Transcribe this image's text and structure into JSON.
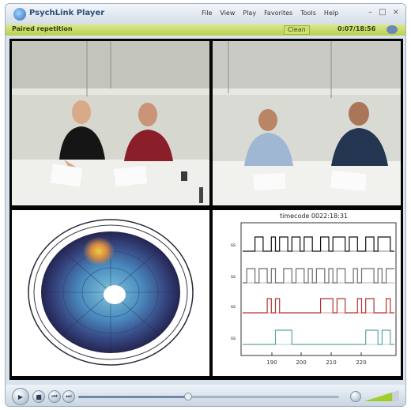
{
  "app": {
    "title": "PsychLink Player"
  },
  "menu": [
    "File",
    "View",
    "Play",
    "Favorites",
    "Tools",
    "Help"
  ],
  "window_controls": {
    "minimize": "–",
    "maximize": "□",
    "close": "×"
  },
  "status": {
    "left": "Paired repetition",
    "middle": "Clean",
    "time": "0:07/18:56"
  },
  "plot": {
    "title": "timecode 0022:18:31",
    "colors": [
      "#111111",
      "#6e6e6e",
      "#b33434",
      "#5fa3a0"
    ],
    "chart_data": {
      "type": "line",
      "series": [
        {
          "values": [
            0,
            0,
            0,
            1,
            1,
            0,
            0,
            1,
            0,
            1,
            1,
            0,
            1,
            1,
            0,
            1,
            1,
            0,
            0,
            1,
            1,
            0,
            1,
            1,
            1,
            0,
            1,
            1,
            0,
            0,
            1,
            1,
            0,
            1,
            1,
            1,
            0
          ]
        },
        {
          "values": [
            0,
            1,
            1,
            0,
            1,
            1,
            0,
            1,
            0,
            0,
            1,
            1,
            0,
            1,
            1,
            0,
            1,
            0,
            1,
            1,
            0,
            1,
            0,
            1,
            1,
            0,
            0,
            1,
            0,
            1,
            1,
            1,
            0,
            1,
            0,
            1,
            1
          ]
        },
        {
          "values": [
            0,
            0,
            0,
            0,
            0,
            0,
            1,
            0,
            1,
            0,
            0,
            0,
            0,
            0,
            0,
            0,
            0,
            0,
            0,
            1,
            1,
            1,
            0,
            1,
            1,
            0,
            0,
            0,
            1,
            0,
            1,
            1,
            0,
            0,
            0,
            1,
            0
          ]
        },
        {
          "values": [
            0,
            0,
            0,
            0,
            0,
            0,
            0,
            0,
            1,
            1,
            1,
            1,
            0,
            0,
            0,
            0,
            0,
            0,
            0,
            0,
            0,
            0,
            0,
            0,
            0,
            0,
            0,
            0,
            0,
            0,
            1,
            1,
            1,
            0,
            1,
            1,
            0
          ]
        }
      ],
      "xticks": [
        "190",
        "200",
        "210",
        "220"
      ],
      "yticks": [
        "ss",
        "ss",
        "ss",
        "ss"
      ]
    }
  },
  "playback": {
    "position": 0.42,
    "volume": 0.8
  },
  "icons": {
    "play": "▶",
    "stop": "■",
    "prev": "⏮",
    "next": "⏭"
  }
}
